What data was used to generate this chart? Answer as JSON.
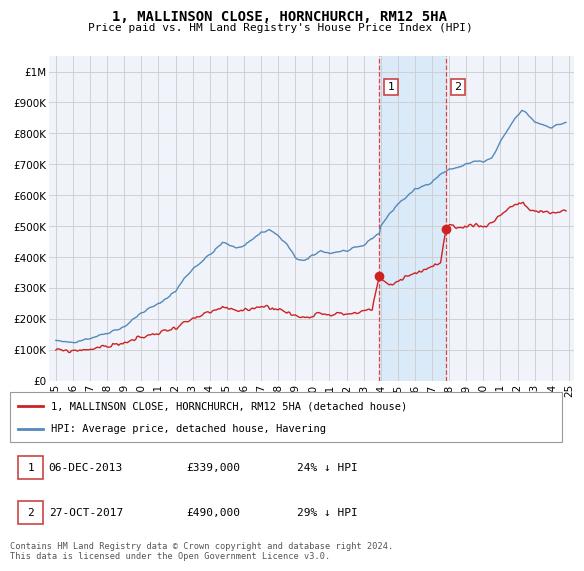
{
  "title": "1, MALLINSON CLOSE, HORNCHURCH, RM12 5HA",
  "subtitle": "Price paid vs. HM Land Registry's House Price Index (HPI)",
  "legend_label_red": "1, MALLINSON CLOSE, HORNCHURCH, RM12 5HA (detached house)",
  "legend_label_blue": "HPI: Average price, detached house, Havering",
  "footer": "Contains HM Land Registry data © Crown copyright and database right 2024.\nThis data is licensed under the Open Government Licence v3.0.",
  "transactions": [
    {
      "num": 1,
      "date": "06-DEC-2013",
      "price": "£339,000",
      "hpi": "24% ↓ HPI"
    },
    {
      "num": 2,
      "date": "27-OCT-2017",
      "price": "£490,000",
      "hpi": "29% ↓ HPI"
    }
  ],
  "shade_start": 2013.92,
  "shade_end": 2017.83,
  "transaction1_x": 2013.92,
  "transaction1_y": 339000,
  "transaction2_x": 2017.83,
  "transaction2_y": 490000,
  "xlim": [
    1994.6,
    2025.3
  ],
  "ylim": [
    0,
    1050000
  ],
  "yticks": [
    0,
    100000,
    200000,
    300000,
    400000,
    500000,
    600000,
    700000,
    800000,
    900000,
    1000000
  ],
  "ytick_labels": [
    "£0",
    "£100K",
    "£200K",
    "£300K",
    "£400K",
    "£500K",
    "£600K",
    "£700K",
    "£800K",
    "£900K",
    "£1M"
  ],
  "xticks": [
    1995,
    1996,
    1997,
    1998,
    1999,
    2000,
    2001,
    2002,
    2003,
    2004,
    2005,
    2006,
    2007,
    2008,
    2009,
    2010,
    2011,
    2012,
    2013,
    2014,
    2015,
    2016,
    2017,
    2018,
    2019,
    2020,
    2021,
    2022,
    2023,
    2024,
    2025
  ],
  "bg_color": "#f0f4fa",
  "grid_color": "#cccccc",
  "blue_color": "#5588bb",
  "red_color": "#cc2222",
  "shade_color": "#daeaf8",
  "vline_color": "#dd4444"
}
